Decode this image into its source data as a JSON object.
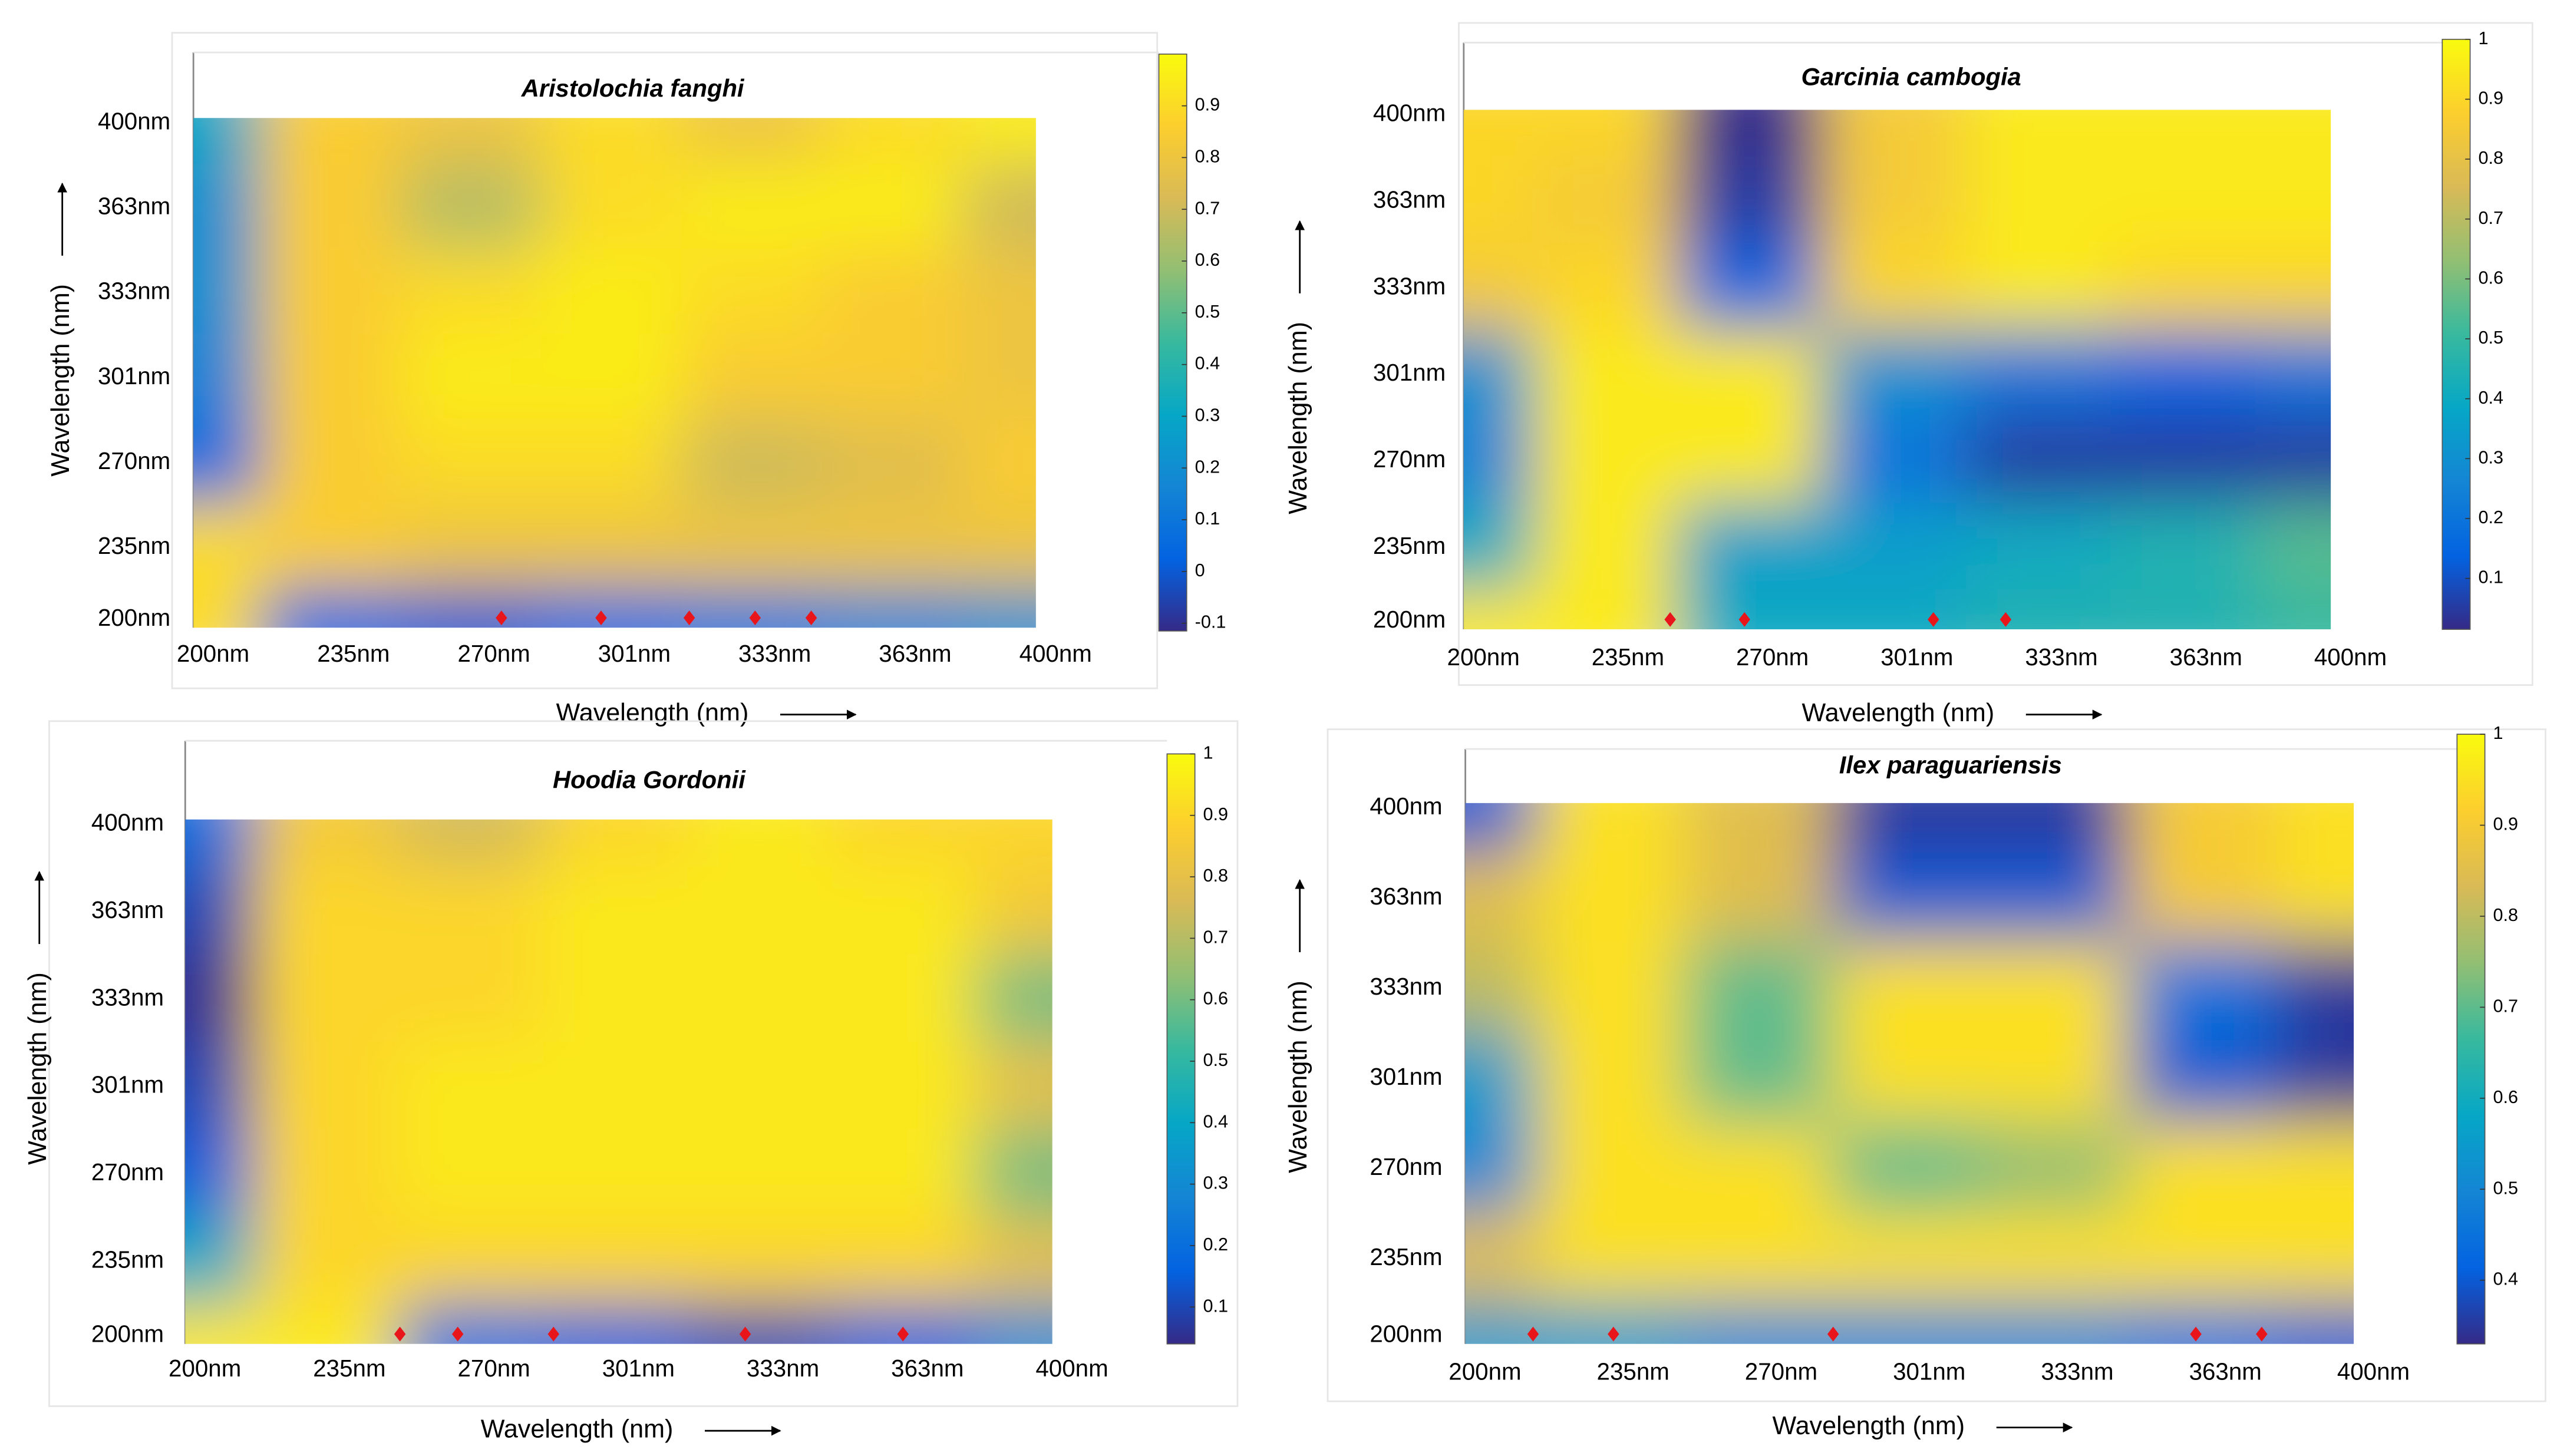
{
  "chart_data": [
    {
      "type": "heatmap",
      "title": "Aristolochia fanghi",
      "x_label": "Wavelength (nm)",
      "y_label": "Wavelength (nm)",
      "x": [
        200,
        235,
        270,
        301,
        333,
        363,
        400
      ],
      "y": [
        200,
        235,
        270,
        301,
        333,
        363,
        400
      ],
      "xlim": [
        200,
        400
      ],
      "ylim": [
        200,
        400
      ],
      "xticks": [
        {
          "value": 200,
          "label": "200nm"
        },
        {
          "value": 235,
          "label": "235nm"
        },
        {
          "value": 270,
          "label": "270nm"
        },
        {
          "value": 301,
          "label": "301nm"
        },
        {
          "value": 333,
          "label": "333nm"
        },
        {
          "value": 363,
          "label": "363nm"
        },
        {
          "value": 400,
          "label": "400nm"
        }
      ],
      "yticks": [
        {
          "value": 200,
          "label": "200nm"
        },
        {
          "value": 235,
          "label": "235nm"
        },
        {
          "value": 270,
          "label": "270nm"
        },
        {
          "value": 301,
          "label": "301nm"
        },
        {
          "value": 333,
          "label": "333nm"
        },
        {
          "value": 363,
          "label": "363nm"
        },
        {
          "value": 400,
          "label": "400nm"
        }
      ],
      "z": [
        [
          0.9,
          0.05,
          0.0,
          0.05,
          0.1,
          0.15,
          0.2
        ],
        [
          0.9,
          0.85,
          0.8,
          0.8,
          0.8,
          0.8,
          0.8
        ],
        [
          0.05,
          0.85,
          0.9,
          0.9,
          0.7,
          0.75,
          0.85
        ],
        [
          0.15,
          0.85,
          0.95,
          0.95,
          0.85,
          0.85,
          0.8
        ],
        [
          0.2,
          0.85,
          0.9,
          0.95,
          0.9,
          0.85,
          0.8
        ],
        [
          0.2,
          0.85,
          0.65,
          0.9,
          0.95,
          0.95,
          0.7
        ],
        [
          0.3,
          0.85,
          0.8,
          0.9,
          0.8,
          0.9,
          0.95
        ]
      ],
      "clim": [
        -0.115,
        1.0
      ],
      "cticks": [
        -0.1,
        0,
        0.1,
        0.2,
        0.3,
        0.4,
        0.5,
        0.6,
        0.7,
        0.8,
        0.9
      ],
      "colormap": "parula",
      "markers": {
        "x": [
          276,
          298,
          318,
          333,
          345
        ],
        "y": [
          200,
          200,
          200,
          200,
          200
        ],
        "color": "#e8151b"
      }
    },
    {
      "type": "heatmap",
      "title": "Garcinia cambogia",
      "x_label": "Wavelength (nm)",
      "y_label": "Wavelength (nm)",
      "x": [
        200,
        235,
        270,
        301,
        333,
        363,
        400
      ],
      "y": [
        200,
        235,
        270,
        301,
        333,
        363,
        400
      ],
      "xlim": [
        200,
        400
      ],
      "ylim": [
        200,
        400
      ],
      "xticks": [
        {
          "value": 200,
          "label": "200nm"
        },
        {
          "value": 235,
          "label": "235nm"
        },
        {
          "value": 270,
          "label": "270nm"
        },
        {
          "value": 301,
          "label": "301nm"
        },
        {
          "value": 333,
          "label": "333nm"
        },
        {
          "value": 363,
          "label": "363nm"
        },
        {
          "value": 400,
          "label": "400nm"
        }
      ],
      "yticks": [
        {
          "value": 200,
          "label": "200nm"
        },
        {
          "value": 235,
          "label": "235nm"
        },
        {
          "value": 270,
          "label": "270nm"
        },
        {
          "value": 301,
          "label": "301nm"
        },
        {
          "value": 333,
          "label": "333nm"
        },
        {
          "value": 363,
          "label": "363nm"
        },
        {
          "value": 400,
          "label": "400nm"
        }
      ],
      "z": [
        [
          0.95,
          0.95,
          0.4,
          0.4,
          0.45,
          0.45,
          0.5
        ],
        [
          0.4,
          0.95,
          0.35,
          0.35,
          0.4,
          0.45,
          0.55
        ],
        [
          0.25,
          0.95,
          0.95,
          0.2,
          0.05,
          0.05,
          0.05
        ],
        [
          0.3,
          0.95,
          0.95,
          0.3,
          0.2,
          0.15,
          0.2
        ],
        [
          0.85,
          0.9,
          0.15,
          0.9,
          0.95,
          0.9,
          0.9
        ],
        [
          0.9,
          0.85,
          0.05,
          0.85,
          0.95,
          0.95,
          0.95
        ],
        [
          0.9,
          0.9,
          0.0,
          0.85,
          0.95,
          0.95,
          0.95
        ]
      ],
      "clim": [
        0.015,
        1.0
      ],
      "cticks": [
        0.1,
        0.2,
        0.3,
        0.4,
        0.5,
        0.6,
        0.7,
        0.8,
        0.9,
        1
      ],
      "colormap": "parula",
      "markers": {
        "x": [
          250,
          268,
          309,
          325
        ],
        "y": [
          200,
          200,
          200,
          200
        ],
        "color": "#e8151b"
      }
    },
    {
      "type": "heatmap",
      "title": "Hoodia Gordonii",
      "x_label": "Wavelength (nm)",
      "y_label": "Wavelength (nm)",
      "x": [
        200,
        235,
        270,
        301,
        333,
        363,
        400
      ],
      "y": [
        200,
        235,
        270,
        301,
        333,
        363,
        400
      ],
      "xlim": [
        200,
        400
      ],
      "ylim": [
        200,
        400
      ],
      "xticks": [
        {
          "value": 200,
          "label": "200nm"
        },
        {
          "value": 235,
          "label": "235nm"
        },
        {
          "value": 270,
          "label": "270nm"
        },
        {
          "value": 301,
          "label": "301nm"
        },
        {
          "value": 333,
          "label": "333nm"
        },
        {
          "value": 363,
          "label": "363nm"
        },
        {
          "value": 400,
          "label": "400nm"
        }
      ],
      "yticks": [
        {
          "value": 200,
          "label": "200nm"
        },
        {
          "value": 235,
          "label": "235nm"
        },
        {
          "value": 270,
          "label": "270nm"
        },
        {
          "value": 301,
          "label": "301nm"
        },
        {
          "value": 333,
          "label": "333nm"
        },
        {
          "value": 363,
          "label": "363nm"
        },
        {
          "value": 400,
          "label": "400nm"
        }
      ],
      "z": [
        [
          0.95,
          0.95,
          0.2,
          0.15,
          0.1,
          0.15,
          0.3
        ],
        [
          0.4,
          0.9,
          0.9,
          0.9,
          0.9,
          0.9,
          0.8
        ],
        [
          0.15,
          0.9,
          0.95,
          0.95,
          0.95,
          0.95,
          0.6
        ],
        [
          0.1,
          0.9,
          0.95,
          0.95,
          0.95,
          0.95,
          0.8
        ],
        [
          0.05,
          0.9,
          0.9,
          0.95,
          0.95,
          0.95,
          0.6
        ],
        [
          0.1,
          0.9,
          0.9,
          0.95,
          0.95,
          0.95,
          0.85
        ],
        [
          0.2,
          0.85,
          0.75,
          0.9,
          0.95,
          0.9,
          0.9
        ]
      ],
      "clim": [
        0.04,
        1.0
      ],
      "cticks": [
        0.1,
        0.2,
        0.3,
        0.4,
        0.5,
        0.6,
        0.7,
        0.8,
        0.9,
        1
      ],
      "colormap": "parula",
      "markers": {
        "x": [
          252,
          266,
          287,
          329,
          362
        ],
        "y": [
          200,
          200,
          200,
          200,
          200
        ],
        "color": "#e8151b"
      }
    },
    {
      "type": "heatmap",
      "title": "Ilex paraguariensis",
      "x_label": "Wavelength (nm)",
      "y_label": "Wavelength (nm)",
      "x": [
        200,
        235,
        270,
        301,
        333,
        363,
        400
      ],
      "y": [
        200,
        235,
        270,
        301,
        333,
        363,
        400
      ],
      "xlim": [
        200,
        400
      ],
      "ylim": [
        200,
        400
      ],
      "xticks": [
        {
          "value": 200,
          "label": "200nm"
        },
        {
          "value": 235,
          "label": "235nm"
        },
        {
          "value": 270,
          "label": "270nm"
        },
        {
          "value": 301,
          "label": "301nm"
        },
        {
          "value": 333,
          "label": "333nm"
        },
        {
          "value": 363,
          "label": "363nm"
        },
        {
          "value": 400,
          "label": "400nm"
        }
      ],
      "yticks": [
        {
          "value": 200,
          "label": "200nm"
        },
        {
          "value": 235,
          "label": "235nm"
        },
        {
          "value": 270,
          "label": "270nm"
        },
        {
          "value": 301,
          "label": "301nm"
        },
        {
          "value": 333,
          "label": "333nm"
        },
        {
          "value": 363,
          "label": "363nm"
        },
        {
          "value": 400,
          "label": "400nm"
        }
      ],
      "z": [
        [
          0.55,
          0.55,
          0.5,
          0.5,
          0.5,
          0.45,
          0.4
        ],
        [
          0.85,
          0.95,
          0.95,
          0.95,
          0.95,
          0.95,
          0.95
        ],
        [
          0.5,
          0.95,
          0.95,
          0.7,
          0.75,
          0.95,
          0.95
        ],
        [
          0.55,
          0.95,
          0.7,
          0.95,
          0.95,
          0.4,
          0.35
        ],
        [
          0.8,
          0.95,
          0.7,
          0.95,
          0.95,
          0.45,
          0.35
        ],
        [
          0.85,
          0.95,
          0.85,
          0.4,
          0.4,
          0.9,
          0.95
        ],
        [
          0.4,
          0.95,
          0.85,
          0.35,
          0.35,
          0.9,
          0.95
        ]
      ],
      "clim": [
        0.33,
        1.0
      ],
      "cticks": [
        0.4,
        0.5,
        0.6,
        0.7,
        0.8,
        0.9,
        1
      ],
      "colormap": "parula",
      "markers": {
        "x": [
          216,
          235,
          285,
          361,
          377
        ],
        "y": [
          200,
          200,
          200,
          200,
          200
        ],
        "color": "#e8151b"
      }
    }
  ]
}
